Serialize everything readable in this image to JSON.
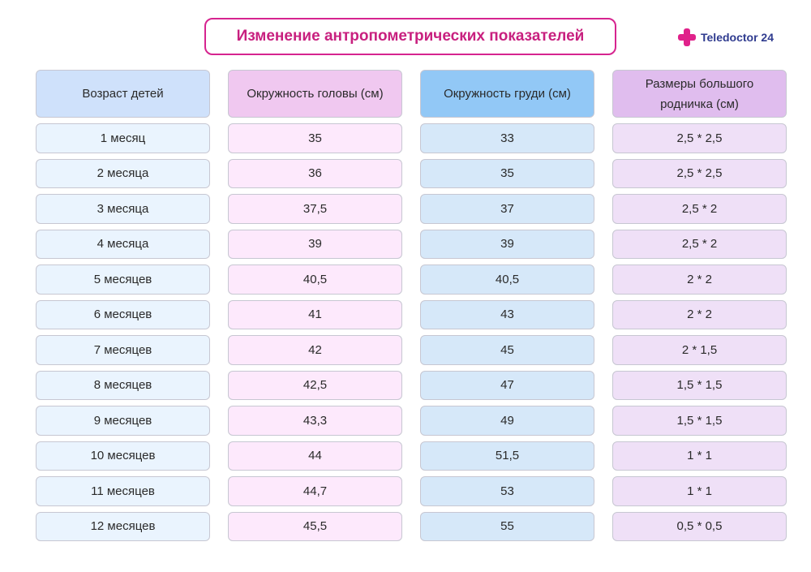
{
  "title": "Изменение антропометрических показателей",
  "brand": {
    "name": "Teledoctor 24",
    "icon": "plus-cross-icon",
    "color": "#e0218a"
  },
  "table": {
    "headers": [
      "Возраст детей",
      "Окружность головы (см)",
      "Окружность груди (см)",
      "Размеры большого родничка (см)"
    ],
    "rows": [
      [
        "1 месяц",
        "35",
        "33",
        "2,5 * 2,5"
      ],
      [
        "2 месяца",
        "36",
        "35",
        "2,5 * 2,5"
      ],
      [
        "3 месяца",
        "37,5",
        "37",
        "2,5 * 2"
      ],
      [
        "4 месяца",
        "39",
        "39",
        "2,5 * 2"
      ],
      [
        "5 месяцев",
        "40,5",
        "40,5",
        "2 * 2"
      ],
      [
        "6 месяцев",
        "41",
        "43",
        "2 * 2"
      ],
      [
        "7 месяцев",
        "42",
        "45",
        "2 * 1,5"
      ],
      [
        "8 месяцев",
        "42,5",
        "47",
        "1,5 * 1,5"
      ],
      [
        "9 месяцев",
        "43,3",
        "49",
        "1,5 * 1,5"
      ],
      [
        "10 месяцев",
        "44",
        "51,5",
        "1 * 1"
      ],
      [
        "11 месяцев",
        "44,7",
        "53",
        "1 * 1"
      ],
      [
        "12 месяцев",
        "45,5",
        "55",
        "0,5 * 0,5"
      ]
    ]
  },
  "colors": {
    "title_accent": "#d6248f",
    "header_age": "#cfe1fb",
    "header_head": "#f0c8f0",
    "header_chest": "#92c8f6",
    "header_fontanelle": "#e0bdee",
    "cell_age": "#eaf4fe",
    "cell_head": "#fde9fc",
    "cell_chest": "#d6e8f9",
    "cell_fontanelle": "#efe0f7"
  }
}
